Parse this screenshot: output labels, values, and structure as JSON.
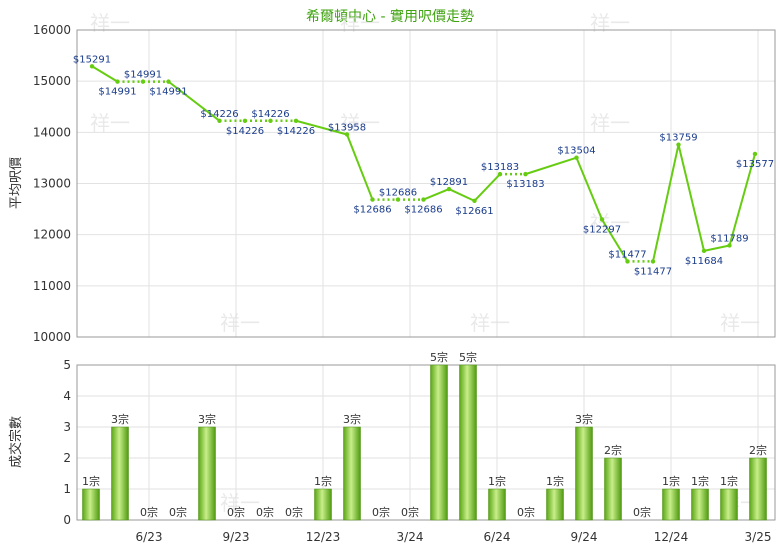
{
  "chart_data": [
    {
      "type": "line",
      "title": "希爾頓中心 - 實用呎價走勢",
      "ylabel": "平均呎價",
      "ylim": [
        10000,
        16000
      ],
      "y_ticks": [
        "10000",
        "11000",
        "12000",
        "13000",
        "14000",
        "15000",
        "16000"
      ],
      "series": [
        {
          "values": [
            15291,
            14991,
            14991,
            14991,
            null,
            14226,
            14226,
            14226,
            14226,
            null,
            13958,
            12686,
            12686,
            12686,
            12891,
            12661,
            13183,
            13183,
            null,
            13504,
            12297,
            11477,
            11477,
            13759,
            11684,
            11789,
            13577
          ],
          "labels": [
            "$15291",
            "$14991",
            "$14991",
            "$14991",
            "",
            "$14226",
            "$14226",
            "$14226",
            "$14226",
            "",
            "$13958",
            "$12686",
            "$12686",
            "$12686",
            "$12891",
            "$12661",
            "$13183",
            "$13183",
            "",
            "$13504",
            "$12297",
            "$11477",
            "$11477",
            "$13759",
            "$11684",
            "$11789",
            "$13577"
          ]
        }
      ],
      "line_color": "#66cc11"
    },
    {
      "type": "bar",
      "ylabel": "成交宗數",
      "ylim": [
        0,
        5
      ],
      "y_ticks": [
        "0",
        "1",
        "2",
        "3",
        "4",
        "5"
      ],
      "categories": [
        "",
        "",
        "6/23",
        "",
        "",
        "9/23",
        "",
        "",
        "12/23",
        "",
        "",
        "3/24",
        "",
        "",
        "6/24",
        "",
        "",
        "9/24",
        "",
        "",
        "12/24",
        "",
        "",
        "3/25"
      ],
      "values": [
        1,
        3,
        0,
        0,
        3,
        0,
        0,
        0,
        1,
        3,
        0,
        0,
        5,
        5,
        1,
        0,
        1,
        3,
        2,
        0,
        1,
        1,
        1,
        2
      ],
      "value_labels": [
        "1宗",
        "3宗",
        "0宗",
        "0宗",
        "3宗",
        "0宗",
        "0宗",
        "0宗",
        "1宗",
        "3宗",
        "0宗",
        "0宗",
        "5宗",
        "5宗",
        "1宗",
        "0宗",
        "1宗",
        "3宗",
        "2宗",
        "0宗",
        "1宗",
        "1宗",
        "1宗",
        "2宗"
      ],
      "bar_color": "#66bb22"
    }
  ],
  "watermark": "祥一"
}
